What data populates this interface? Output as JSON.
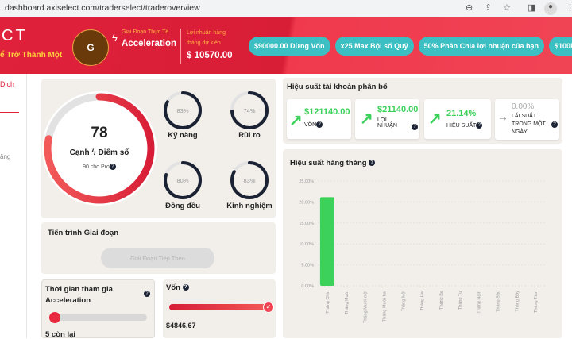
{
  "browser": {
    "url": "dashboard.axiselect.com/traderselect/traderoverview",
    "icons": [
      "zoom-icon",
      "share-icon",
      "star-icon",
      "sidepanel-icon",
      "profile-icon",
      "menu-icon"
    ]
  },
  "header": {
    "logo": "CT",
    "tagline": "ể Trở Thành Một",
    "avatar_letter": "G",
    "stage_label": "Giai Đoạn Thực Tế",
    "stage": "Acceleration",
    "profit_label_1": "Lợi nhuận hàng",
    "profit_label_2": "tháng dự kiến",
    "profit": "$ 10570.00",
    "pills": [
      "$90000.00 Dừng Vốn",
      "x25 Max Bội số Quỹ",
      "50% Phân Chia lợi nhuận của bạn",
      "$100k Tài t"
    ]
  },
  "sidebar": {
    "item1": "Dịch",
    "item2": "ăng"
  },
  "score": {
    "value": "78",
    "label_left": "Cạnh",
    "label_right": "Điểm số",
    "sub": "90 cho Pro",
    "percent": 78,
    "metrics": [
      {
        "label": "Kỹ năng",
        "value": 83
      },
      {
        "label": "Rủi ro",
        "value": 74
      },
      {
        "label": "Đồng đều",
        "value": 80
      },
      {
        "label": "Kinh nghiệm",
        "value": 83
      }
    ]
  },
  "stage_progress": {
    "title": "Tiến trình Giai đoạn",
    "button": "Giai Đoạn Tiếp Theo"
  },
  "time": {
    "title_1": "Thời gian tham gia",
    "title_2": "Acceleration",
    "remaining": "5 còn lại"
  },
  "capital": {
    "title": "Vốn",
    "value": "$4846.67",
    "progress": 100
  },
  "allocation": {
    "title": "Hiệu suất tài khoản phân bổ",
    "stats": [
      {
        "value": "$121140.00",
        "label": "VỐN",
        "trend": "up"
      },
      {
        "value": "$21140.00",
        "label": "LỢI NHUẬN",
        "trend": "up"
      },
      {
        "value": "21.14%",
        "label": "HIỆU SUẤT",
        "trend": "up"
      },
      {
        "value": "0.00%",
        "label": "LÃI SUẤT TRONG MỘT NGÀY",
        "trend": "flat"
      }
    ]
  },
  "colors": {
    "brand_red": "#e0213b",
    "accent_teal": "#3cbfc3",
    "positive_green": "#3bd15a",
    "ring_dark": "#1b2233"
  },
  "chart_data": {
    "type": "bar",
    "title": "Hiệu suất hàng tháng",
    "categories": [
      "Tháng Chín",
      "Tháng Mười",
      "Tháng Mười một",
      "Tháng Mười hai",
      "Tháng Một",
      "Tháng Hai",
      "Tháng Ba",
      "Tháng Tư",
      "Tháng Năm",
      "Tháng Sáu",
      "Tháng Bảy",
      "Tháng Tám"
    ],
    "values": [
      21.14,
      0,
      0,
      0,
      0,
      0,
      0,
      0,
      0,
      0,
      0,
      0
    ],
    "ylim": [
      0,
      25
    ],
    "yticks": [
      "0.00%",
      "5.00%",
      "10.00%",
      "15.00%",
      "20.00%",
      "25.00%"
    ],
    "grid": true,
    "color": "#3bd15a"
  }
}
